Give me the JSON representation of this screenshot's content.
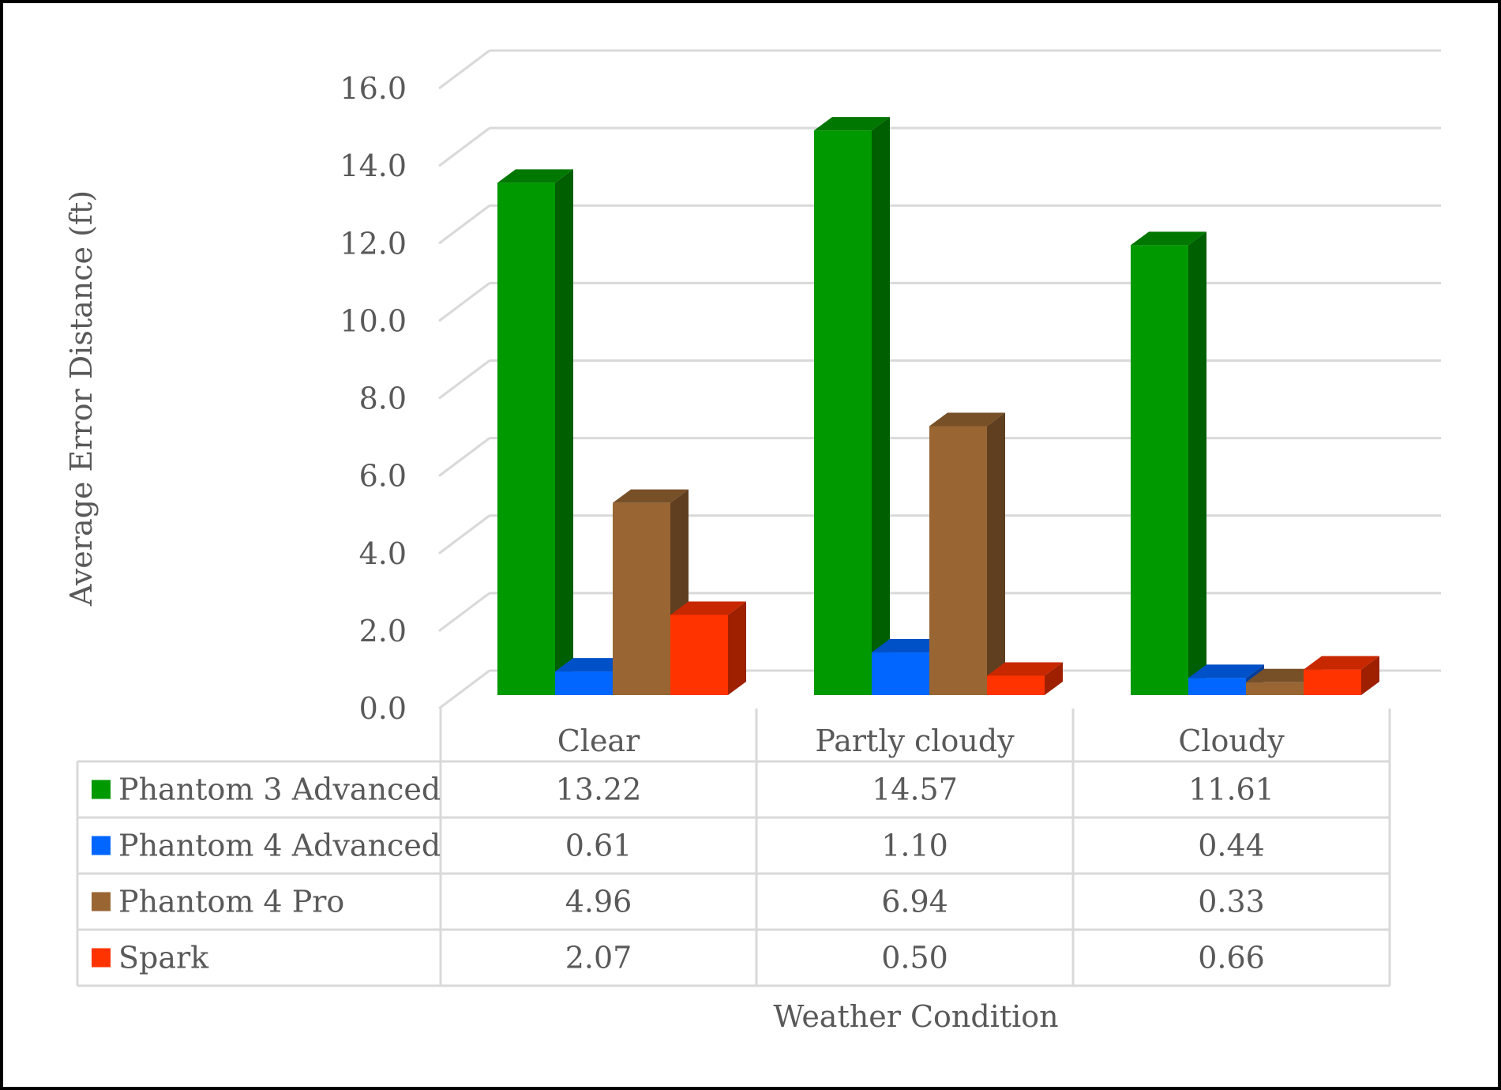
{
  "chart_data": {
    "type": "bar",
    "style": "3d-clustered-column-with-data-table",
    "title": "",
    "xlabel": "Weather Condition",
    "ylabel": "Average Error Distance (ft)",
    "ylim": [
      0,
      16
    ],
    "yticks": [
      "0.0",
      "2.0",
      "4.0",
      "6.0",
      "8.0",
      "10.0",
      "12.0",
      "14.0",
      "16.0"
    ],
    "grid": true,
    "legend": "data-table",
    "categories": [
      "Clear",
      "Partly cloudy",
      "Cloudy"
    ],
    "series": [
      {
        "name": "Phantom 3 Advanced",
        "color": "#009900",
        "values": [
          13.22,
          14.57,
          11.61
        ],
        "labels": [
          "13.22",
          "14.57",
          "11.61"
        ]
      },
      {
        "name": "Phantom 4 Advanced",
        "color": "#0066FF",
        "values": [
          0.61,
          1.1,
          0.44
        ],
        "labels": [
          "0.61",
          "1.10",
          "0.44"
        ]
      },
      {
        "name": "Phantom 4 Pro",
        "color": "#996633",
        "values": [
          4.96,
          6.94,
          0.33
        ],
        "labels": [
          "4.96",
          "6.94",
          "0.33"
        ]
      },
      {
        "name": "Spark",
        "color": "#FF3300",
        "values": [
          2.07,
          0.5,
          0.66
        ],
        "labels": [
          "2.07",
          "0.50",
          "0.66"
        ]
      }
    ]
  }
}
